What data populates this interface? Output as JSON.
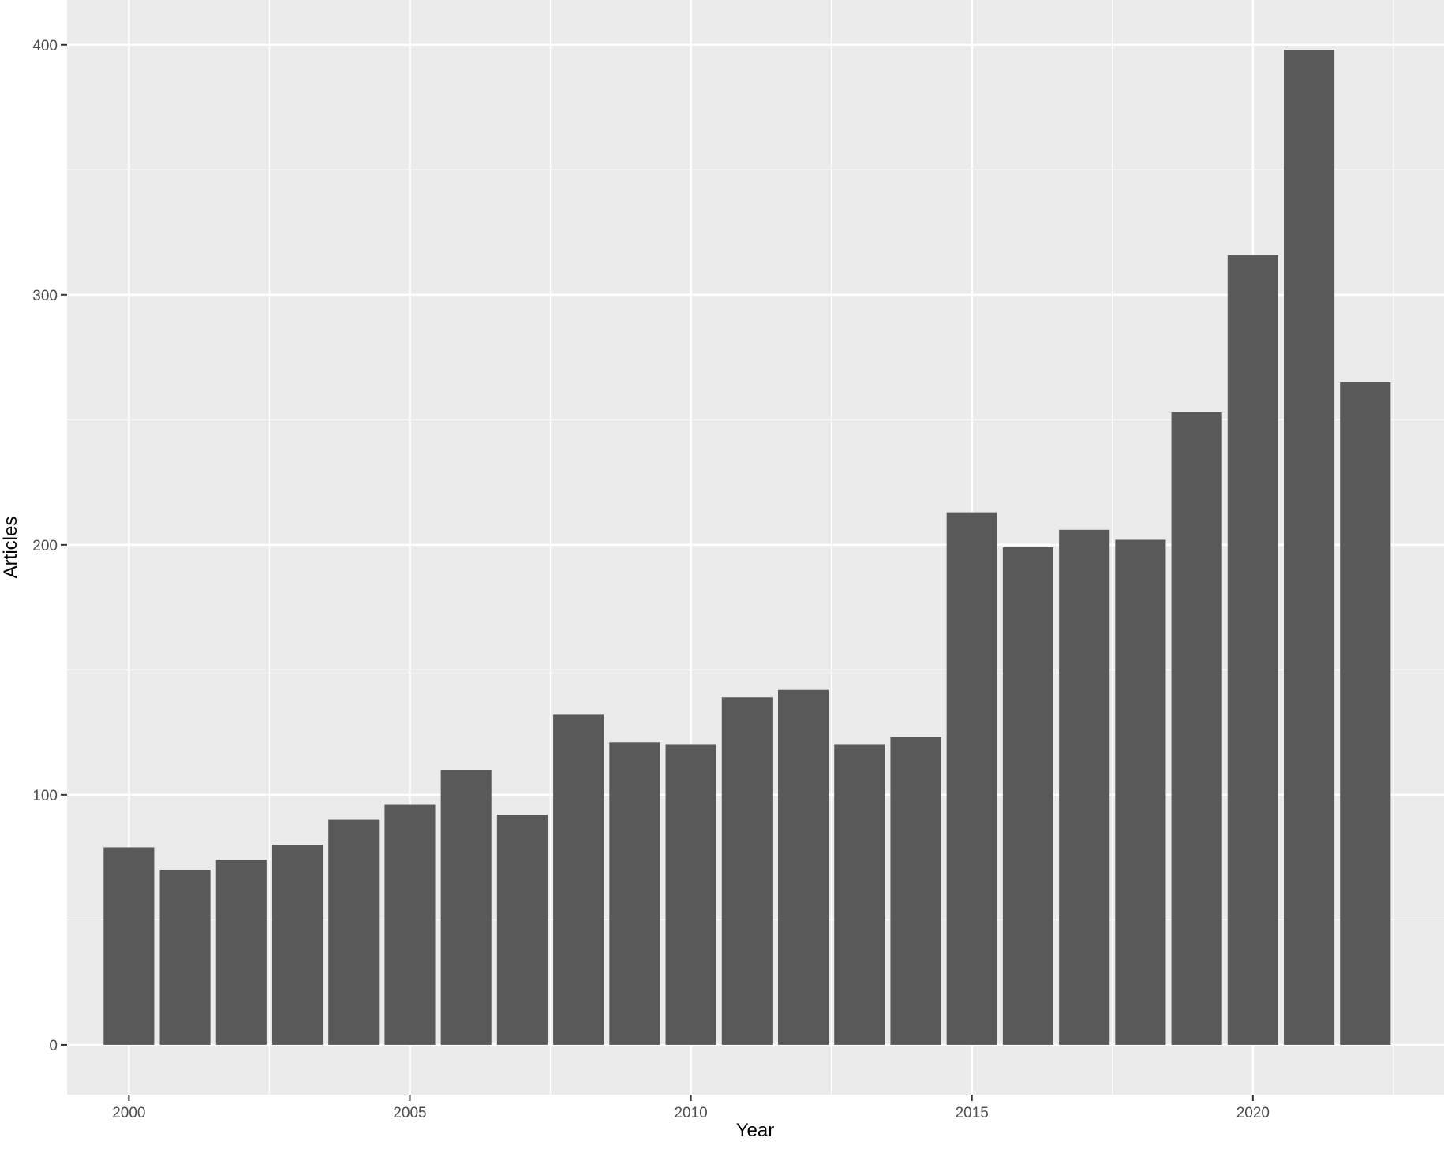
{
  "chart_data": {
    "type": "bar",
    "xlabel": "Year",
    "ylabel": "Articles",
    "categories": [
      2000,
      2001,
      2002,
      2003,
      2004,
      2005,
      2006,
      2007,
      2008,
      2009,
      2010,
      2011,
      2012,
      2013,
      2014,
      2015,
      2016,
      2017,
      2018,
      2019,
      2020,
      2021,
      2022
    ],
    "values": [
      79,
      70,
      74,
      80,
      90,
      96,
      110,
      92,
      132,
      121,
      120,
      139,
      142,
      120,
      123,
      213,
      199,
      206,
      202,
      253,
      316,
      398,
      265
    ],
    "x_ticks": [
      2000,
      2005,
      2010,
      2015,
      2020
    ],
    "x_tick_labels": [
      "2000",
      "2005",
      "2010",
      "2015",
      "2020"
    ],
    "y_ticks": [
      0,
      100,
      200,
      300,
      400
    ],
    "y_tick_labels": [
      "0",
      "100",
      "200",
      "300",
      "400"
    ],
    "xlim": [
      1998.9,
      2023.4
    ],
    "ylim": [
      -19.9,
      417.9
    ],
    "grid": true,
    "legend": "none",
    "colors": {
      "bar": "#595959",
      "panel_background": "#ebebeb",
      "grid_line": "#ffffff",
      "tick_text": "#4d4d4d",
      "title_text": "#000000"
    }
  }
}
